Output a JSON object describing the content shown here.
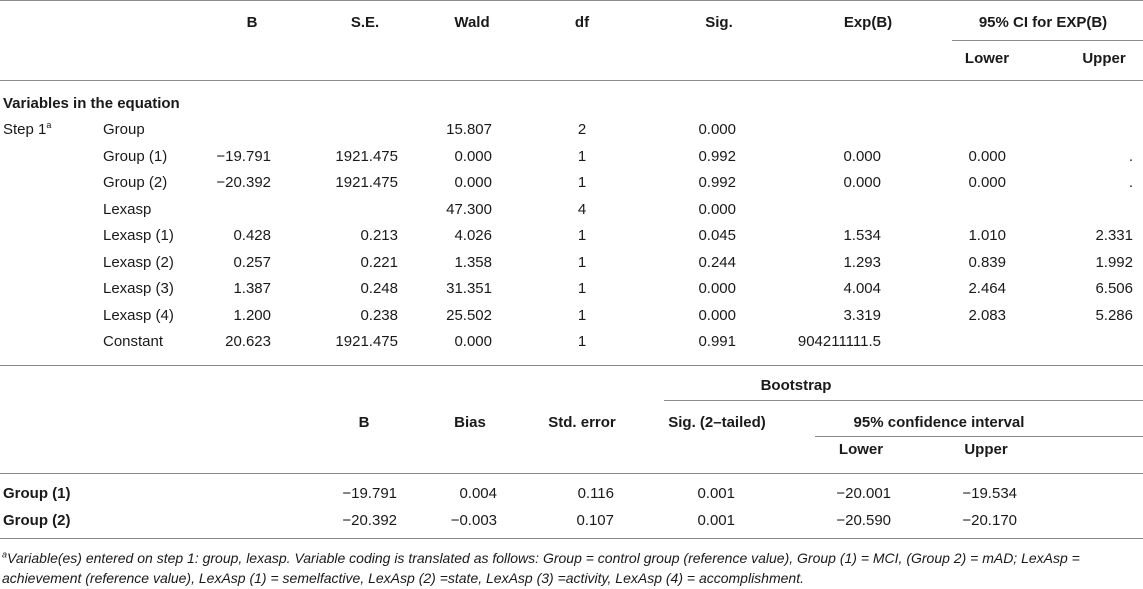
{
  "table1": {
    "headers": {
      "b": "B",
      "se": "S.E.",
      "wald": "Wald",
      "df": "df",
      "sig": "Sig.",
      "expb": "Exp(B)",
      "ci": "95% CI for EXP(B)",
      "lower": "Lower",
      "upper": "Upper"
    },
    "section_title": "Variables in the equation",
    "step_label": "Step 1",
    "step_sup": "a",
    "rows": [
      {
        "label": "Group",
        "b": "",
        "se": "",
        "wald": "15.807",
        "df": "2",
        "sig": "0.000",
        "expb": "",
        "lower": "",
        "upper": ""
      },
      {
        "label": "Group (1)",
        "b": "−19.791",
        "se": "1921.475",
        "wald": "0.000",
        "df": "1",
        "sig": "0.992",
        "expb": "0.000",
        "lower": "0.000",
        "upper": "."
      },
      {
        "label": "Group (2)",
        "b": "−20.392",
        "se": "1921.475",
        "wald": "0.000",
        "df": "1",
        "sig": "0.992",
        "expb": "0.000",
        "lower": "0.000",
        "upper": "."
      },
      {
        "label": "Lexasp",
        "b": "",
        "se": "",
        "wald": "47.300",
        "df": "4",
        "sig": "0.000",
        "expb": "",
        "lower": "",
        "upper": ""
      },
      {
        "label": "Lexasp (1)",
        "b": "0.428",
        "se": "0.213",
        "wald": "4.026",
        "df": "1",
        "sig": "0.045",
        "expb": "1.534",
        "lower": "1.010",
        "upper": "2.331"
      },
      {
        "label": "Lexasp (2)",
        "b": "0.257",
        "se": "0.221",
        "wald": "1.358",
        "df": "1",
        "sig": "0.244",
        "expb": "1.293",
        "lower": "0.839",
        "upper": "1.992"
      },
      {
        "label": "Lexasp (3)",
        "b": "1.387",
        "se": "0.248",
        "wald": "31.351",
        "df": "1",
        "sig": "0.000",
        "expb": "4.004",
        "lower": "2.464",
        "upper": "6.506"
      },
      {
        "label": "Lexasp (4)",
        "b": "1.200",
        "se": "0.238",
        "wald": "25.502",
        "df": "1",
        "sig": "0.000",
        "expb": "3.319",
        "lower": "2.083",
        "upper": "5.286"
      },
      {
        "label": "Constant",
        "b": "20.623",
        "se": "1921.475",
        "wald": "0.000",
        "df": "1",
        "sig": "0.991",
        "expb": "904211111.5",
        "lower": "",
        "upper": ""
      }
    ]
  },
  "table2": {
    "headers": {
      "bootstrap": "Bootstrap",
      "b": "B",
      "bias": "Bias",
      "stderr": "Std. error",
      "sig": "Sig. (2–tailed)",
      "ci": "95% confidence interval",
      "lower": "Lower",
      "upper": "Upper"
    },
    "rows": [
      {
        "label": "Group (1)",
        "b": "−19.791",
        "bias": "0.004",
        "stderr": "0.116",
        "sig": "0.001",
        "lower": "−20.001",
        "upper": "−19.534"
      },
      {
        "label": "Group (2)",
        "b": "−20.392",
        "bias": "−0.003",
        "stderr": "0.107",
        "sig": "0.001",
        "lower": "−20.590",
        "upper": "−20.170"
      }
    ]
  },
  "footnote": {
    "sup": "a",
    "text": "Variable(es) entered on step 1: group, lexasp. Variable coding is translated as follows: Group = control group (reference value), Group (1) = MCI, (Group 2) = mAD; LexAsp = achievement (reference value), LexAsp (1) = semelfactive, LexAsp (2) =state, LexAsp (3) =activity, LexAsp (4) = accomplishment."
  }
}
